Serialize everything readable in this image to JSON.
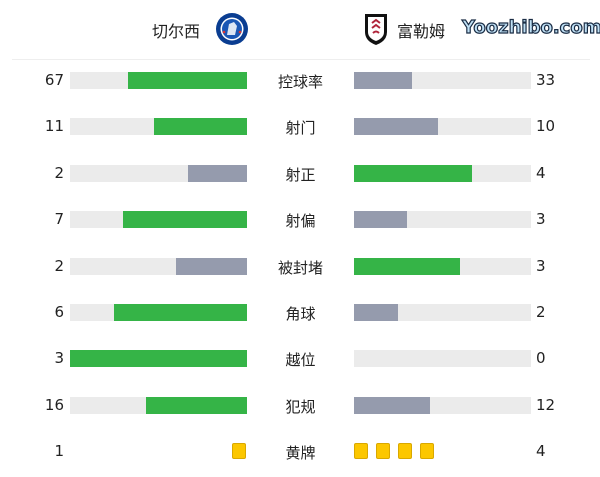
{
  "home": {
    "name": "切尔西",
    "badge": "chelsea-crest"
  },
  "away": {
    "name": "富勒姆",
    "badge": "fulham-crest"
  },
  "colors": {
    "win": "#35b447",
    "lose": "#959bad",
    "track": "#ebebeb",
    "card": "#fcc700"
  },
  "stats": [
    {
      "label": "控球率",
      "home": 67,
      "away": 33
    },
    {
      "label": "射门",
      "home": 11,
      "away": 10
    },
    {
      "label": "射正",
      "home": 2,
      "away": 4
    },
    {
      "label": "射偏",
      "home": 7,
      "away": 3
    },
    {
      "label": "被封堵",
      "home": 2,
      "away": 3
    },
    {
      "label": "角球",
      "home": 6,
      "away": 2
    },
    {
      "label": "越位",
      "home": 3,
      "away": 0
    },
    {
      "label": "犯规",
      "home": 16,
      "away": 12
    }
  ],
  "yellow": {
    "label": "黄牌",
    "home": 1,
    "away": 4
  },
  "watermark": "Yoozhibo.com"
}
